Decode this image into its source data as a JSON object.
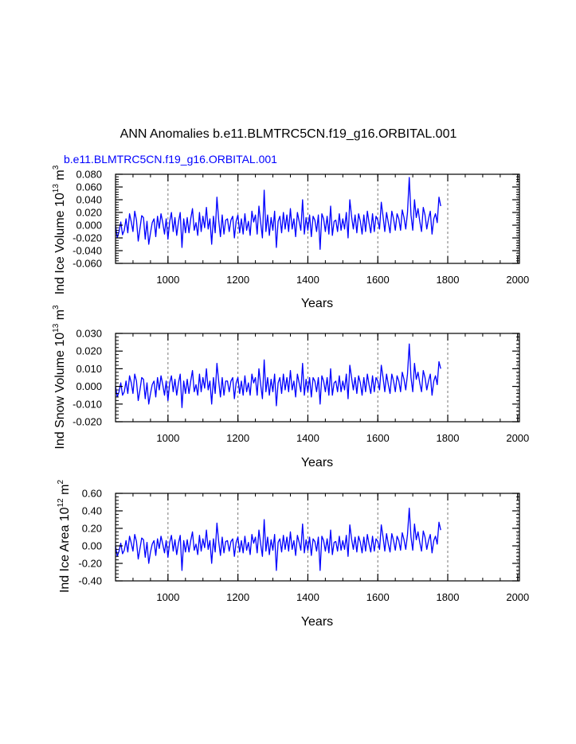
{
  "figure": {
    "title": "ANN Anomalies b.e11.BLMTRC5CN.f19_g16.ORBITAL.001",
    "legend_label": "b.e11.BLMTRC5CN.f19_g16.ORBITAL.001",
    "series_color": "#0000ff",
    "x_ticks": [
      "1000",
      "1200",
      "1400",
      "1600",
      "1800",
      "2000"
    ]
  },
  "chart_data": [
    {
      "type": "line",
      "name": "ice-volume",
      "title": "",
      "xlabel": "Years",
      "ylabel_main": "Ind Ice Volume 10",
      "ylabel_exp": "13",
      "ylabel_unit": " m",
      "ylabel_unit_exp": "3",
      "xlim": [
        850,
        2005
      ],
      "ylim": [
        -0.06,
        0.08
      ],
      "xticks": [
        1000,
        1200,
        1400,
        1600,
        1800,
        2000
      ],
      "yticks": [
        -0.06,
        -0.04,
        -0.02,
        0.0,
        0.02,
        0.04,
        0.06,
        0.08
      ],
      "ytick_labels": [
        "-0.060",
        "-0.040",
        "-0.020",
        "0.000",
        "0.020",
        "0.040",
        "0.060",
        "0.080"
      ],
      "grid": "vertical dashed at x ticks",
      "series": [
        {
          "name": "b.e11.BLMTRC5CN.f19_g16.ORBITAL.001",
          "x_start": 850,
          "x_step": 5,
          "values": [
            0.0,
            -0.02,
            -0.01,
            0.005,
            -0.015,
            -0.008,
            0.01,
            -0.012,
            0.018,
            0.005,
            -0.01,
            0.022,
            0.008,
            -0.025,
            -0.005,
            0.015,
            0.012,
            -0.022,
            0.006,
            -0.03,
            -0.012,
            0.004,
            0.01,
            -0.018,
            0.014,
            -0.005,
            0.018,
            0.004,
            -0.014,
            0.01,
            -0.022,
            0.006,
            0.02,
            -0.01,
            0.012,
            -0.016,
            0.005,
            0.02,
            -0.035,
            0.01,
            -0.012,
            0.012,
            -0.012,
            0.01,
            0.026,
            -0.008,
            0.004,
            -0.016,
            0.02,
            -0.01,
            0.014,
            -0.004,
            0.028,
            -0.006,
            0.01,
            -0.03,
            0.014,
            -0.012,
            0.044,
            0.008,
            -0.018,
            0.016,
            -0.014,
            0.008,
            0.01,
            -0.01,
            0.008,
            0.014,
            -0.02,
            0.006,
            0.016,
            -0.012,
            0.01,
            -0.014,
            0.018,
            -0.008,
            0.006,
            -0.016,
            0.022,
            0.005,
            0.016,
            -0.014,
            0.03,
            0.004,
            -0.02,
            0.055,
            -0.01,
            0.016,
            -0.016,
            0.012,
            -0.008,
            0.022,
            -0.035,
            0.006,
            0.014,
            -0.012,
            0.02,
            -0.006,
            0.016,
            -0.01,
            0.026,
            -0.006,
            0.01,
            -0.018,
            0.02,
            0.006,
            -0.008,
            0.04,
            -0.014,
            0.012,
            -0.008,
            0.016,
            -0.018,
            0.014,
            0.008,
            -0.01,
            0.016,
            -0.038,
            0.018,
            0.01,
            -0.01,
            0.014,
            -0.014,
            0.03,
            -0.016,
            0.006,
            0.008,
            -0.01,
            0.018,
            -0.008,
            0.01,
            -0.006,
            0.02,
            -0.02,
            0.04,
            0.014,
            -0.006,
            0.016,
            -0.012,
            0.018,
            0.006,
            -0.014,
            0.016,
            -0.01,
            0.022,
            0.004,
            -0.012,
            0.018,
            -0.01,
            0.014,
            0.008,
            -0.006,
            0.036,
            0.014,
            -0.01,
            0.02,
            0.004,
            -0.012,
            0.022,
            0.01,
            -0.008,
            0.018,
            0.01,
            -0.008,
            0.024,
            0.012,
            -0.006,
            0.02,
            0.075,
            0.016,
            -0.008,
            0.04,
            0.012,
            0.026,
            0.006,
            -0.01,
            0.028,
            0.016,
            -0.006,
            0.01,
            0.022,
            -0.014,
            0.01,
            0.018,
            0.004,
            0.044,
            0.03
          ]
        }
      ]
    },
    {
      "type": "line",
      "name": "snow-volume",
      "title": "",
      "xlabel": "Years",
      "ylabel_main": "Ind Snow Volume 10",
      "ylabel_exp": "13",
      "ylabel_unit": " m",
      "ylabel_unit_exp": "3",
      "xlim": [
        850,
        2005
      ],
      "ylim": [
        -0.02,
        0.03
      ],
      "xticks": [
        1000,
        1200,
        1400,
        1600,
        1800,
        2000
      ],
      "yticks": [
        -0.02,
        -0.01,
        0.0,
        0.01,
        0.02,
        0.03
      ],
      "ytick_labels": [
        "-0.020",
        "-0.010",
        "0.000",
        "0.010",
        "0.020",
        "0.030"
      ],
      "grid": "vertical dashed at x ticks",
      "series": [
        {
          "name": "b.e11.BLMTRC5CN.f19_g16.ORBITAL.001",
          "x_start": 850,
          "x_step": 5,
          "values": [
            0.0,
            -0.006,
            -0.003,
            0.002,
            -0.005,
            -0.003,
            0.003,
            -0.004,
            0.006,
            0.002,
            -0.004,
            0.007,
            0.003,
            -0.008,
            -0.002,
            0.005,
            0.004,
            -0.007,
            0.002,
            -0.01,
            -0.004,
            0.001,
            0.003,
            -0.006,
            0.005,
            -0.002,
            0.006,
            0.001,
            -0.005,
            0.003,
            -0.008,
            0.002,
            0.006,
            -0.003,
            0.004,
            -0.005,
            0.002,
            0.007,
            -0.012,
            0.003,
            -0.004,
            0.004,
            -0.004,
            0.003,
            0.009,
            -0.003,
            0.001,
            -0.005,
            0.007,
            -0.003,
            0.005,
            -0.001,
            0.01,
            -0.002,
            0.003,
            -0.01,
            0.005,
            -0.004,
            0.013,
            0.003,
            -0.006,
            0.005,
            -0.005,
            0.003,
            0.003,
            -0.003,
            0.003,
            0.005,
            -0.007,
            0.002,
            0.005,
            -0.004,
            0.003,
            -0.005,
            0.006,
            -0.003,
            0.002,
            -0.005,
            0.007,
            0.002,
            0.005,
            -0.005,
            0.01,
            0.001,
            -0.007,
            0.015,
            -0.003,
            0.005,
            -0.005,
            0.004,
            -0.003,
            0.007,
            -0.011,
            0.002,
            0.005,
            -0.004,
            0.007,
            -0.002,
            0.005,
            -0.003,
            0.009,
            -0.002,
            0.003,
            -0.006,
            0.007,
            0.002,
            -0.003,
            0.013,
            -0.005,
            0.004,
            -0.003,
            0.005,
            -0.006,
            0.005,
            0.003,
            -0.003,
            0.005,
            -0.01,
            0.006,
            0.003,
            -0.003,
            0.005,
            -0.005,
            0.01,
            -0.005,
            0.002,
            0.003,
            -0.003,
            0.006,
            -0.003,
            0.003,
            -0.002,
            0.007,
            -0.007,
            0.012,
            0.005,
            -0.002,
            0.005,
            -0.004,
            0.006,
            0.002,
            -0.005,
            0.005,
            -0.003,
            0.007,
            0.001,
            -0.004,
            0.006,
            -0.003,
            0.005,
            0.003,
            -0.002,
            0.012,
            0.005,
            -0.003,
            0.007,
            0.001,
            -0.004,
            0.007,
            0.003,
            -0.003,
            0.006,
            0.003,
            -0.003,
            0.008,
            0.004,
            -0.002,
            0.007,
            0.024,
            0.005,
            -0.003,
            0.013,
            0.004,
            0.008,
            0.002,
            -0.003,
            0.009,
            0.005,
            -0.002,
            0.003,
            0.007,
            -0.005,
            0.003,
            0.006,
            0.001,
            0.014,
            0.01
          ]
        }
      ]
    },
    {
      "type": "line",
      "name": "ice-area",
      "title": "",
      "xlabel": "Years",
      "ylabel_main": "Ind Ice Area 10",
      "ylabel_exp": "12",
      "ylabel_unit": " m",
      "ylabel_unit_exp": "2",
      "xlim": [
        850,
        2005
      ],
      "ylim": [
        -0.4,
        0.6
      ],
      "xticks": [
        1000,
        1200,
        1400,
        1600,
        1800,
        2000
      ],
      "yticks": [
        -0.4,
        -0.2,
        0.0,
        0.2,
        0.4,
        0.6
      ],
      "ytick_labels": [
        "-0.40",
        "-0.20",
        "0.00",
        "0.20",
        "0.40",
        "0.60"
      ],
      "grid": "vertical dashed at x ticks",
      "series": [
        {
          "name": "b.e11.BLMTRC5CN.f19_g16.ORBITAL.001",
          "x_start": 850,
          "x_step": 5,
          "values": [
            0.0,
            -0.12,
            -0.06,
            0.03,
            -0.09,
            -0.05,
            0.06,
            -0.07,
            0.11,
            0.03,
            -0.06,
            0.13,
            0.05,
            -0.15,
            -0.03,
            0.09,
            0.07,
            -0.13,
            0.04,
            -0.2,
            -0.07,
            0.02,
            0.06,
            -0.11,
            0.08,
            -0.03,
            0.11,
            0.02,
            -0.08,
            0.06,
            -0.13,
            0.04,
            0.12,
            -0.06,
            0.07,
            -0.1,
            0.03,
            0.12,
            -0.28,
            0.06,
            -0.07,
            0.07,
            -0.07,
            0.06,
            0.16,
            -0.05,
            0.02,
            -0.1,
            0.12,
            -0.06,
            0.08,
            -0.02,
            0.18,
            -0.04,
            0.06,
            -0.2,
            0.08,
            -0.07,
            0.26,
            0.05,
            -0.11,
            0.1,
            -0.08,
            0.05,
            0.06,
            -0.06,
            0.05,
            0.08,
            -0.12,
            0.04,
            0.1,
            -0.07,
            0.06,
            -0.08,
            0.11,
            -0.05,
            0.04,
            -0.1,
            0.13,
            0.03,
            0.1,
            -0.08,
            0.18,
            0.02,
            -0.12,
            0.3,
            -0.06,
            0.1,
            -0.1,
            0.07,
            -0.05,
            0.13,
            -0.28,
            0.04,
            0.08,
            -0.07,
            0.12,
            -0.04,
            0.1,
            -0.06,
            0.16,
            -0.04,
            0.06,
            -0.11,
            0.12,
            0.04,
            -0.05,
            0.25,
            -0.08,
            0.07,
            -0.05,
            0.1,
            -0.11,
            0.08,
            0.05,
            -0.06,
            0.1,
            -0.28,
            0.11,
            0.06,
            -0.06,
            0.08,
            -0.08,
            0.18,
            -0.1,
            0.04,
            0.05,
            -0.06,
            0.11,
            -0.05,
            0.06,
            -0.04,
            0.12,
            -0.12,
            0.24,
            0.08,
            -0.04,
            0.1,
            -0.07,
            0.11,
            0.04,
            -0.08,
            0.1,
            -0.06,
            0.13,
            0.02,
            -0.07,
            0.11,
            -0.06,
            0.08,
            0.05,
            -0.04,
            0.24,
            0.1,
            -0.06,
            0.14,
            0.02,
            -0.07,
            0.14,
            0.06,
            -0.05,
            0.11,
            0.06,
            -0.05,
            0.15,
            0.07,
            -0.04,
            0.13,
            0.43,
            0.1,
            -0.05,
            0.25,
            0.07,
            0.16,
            0.04,
            -0.06,
            0.17,
            0.1,
            -0.04,
            0.06,
            0.13,
            -0.08,
            0.06,
            0.11,
            0.02,
            0.27,
            0.18
          ]
        }
      ]
    }
  ]
}
